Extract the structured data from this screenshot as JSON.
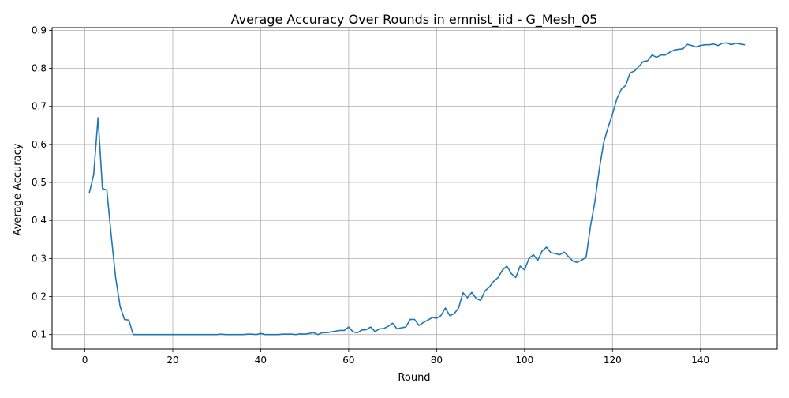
{
  "chart_data": {
    "type": "line",
    "title": "Average Accuracy Over Rounds in emnist_iid - G_Mesh_05",
    "xlabel": "Round",
    "ylabel": "Average Accuracy",
    "xlim": [
      -7.45,
      157.45
    ],
    "ylim": [
      0.062,
      0.907
    ],
    "xticks": [
      0,
      20,
      40,
      60,
      80,
      100,
      120,
      140
    ],
    "xtick_labels": [
      "0",
      "20",
      "40",
      "60",
      "80",
      "100",
      "120",
      "140"
    ],
    "yticks": [
      0.1,
      0.2,
      0.3,
      0.4,
      0.5,
      0.6,
      0.7,
      0.8,
      0.9
    ],
    "ytick_labels": [
      "0.1",
      "0.2",
      "0.3",
      "0.4",
      "0.5",
      "0.6",
      "0.7",
      "0.8",
      "0.9"
    ],
    "grid": true,
    "line_color": "#1f77b4",
    "series": [
      {
        "x": [
          1,
          2,
          3,
          4,
          5,
          6,
          7,
          8,
          9,
          10,
          11,
          12,
          13,
          14,
          15,
          16,
          17,
          18,
          19,
          20,
          21,
          22,
          23,
          24,
          25,
          26,
          27,
          28,
          29,
          30,
          31,
          32,
          33,
          34,
          35,
          36,
          37,
          38,
          39,
          40,
          41,
          42,
          43,
          44,
          45,
          46,
          47,
          48,
          49,
          50,
          51,
          52,
          53,
          54,
          55,
          56,
          57,
          58,
          59,
          60,
          61,
          62,
          63,
          64,
          65,
          66,
          67,
          68,
          69,
          70,
          71,
          72,
          73,
          74,
          75,
          76,
          77,
          78,
          79,
          80,
          81,
          82,
          83,
          84,
          85,
          86,
          87,
          88,
          89,
          90,
          91,
          92,
          93,
          94,
          95,
          96,
          97,
          98,
          99,
          100,
          101,
          102,
          103,
          104,
          105,
          106,
          107,
          108,
          109,
          110,
          111,
          112,
          113,
          114,
          115,
          116,
          117,
          118,
          119,
          120,
          121,
          122,
          123,
          124,
          125,
          126,
          127,
          128,
          129,
          130,
          131,
          132,
          133,
          134,
          135,
          136,
          137,
          138,
          139,
          140,
          141,
          142,
          143,
          144,
          145,
          146,
          147,
          148,
          149,
          150
        ],
        "y": [
          0.472,
          0.52,
          0.67,
          0.484,
          0.48,
          0.36,
          0.25,
          0.175,
          0.14,
          0.138,
          0.1,
          0.1,
          0.1,
          0.1,
          0.1,
          0.1,
          0.1,
          0.1,
          0.1,
          0.1,
          0.1,
          0.1,
          0.1,
          0.1,
          0.1,
          0.1,
          0.1,
          0.1,
          0.1,
          0.1,
          0.101,
          0.1,
          0.1,
          0.1,
          0.1,
          0.1,
          0.101,
          0.101,
          0.1,
          0.103,
          0.1,
          0.1,
          0.1,
          0.1,
          0.101,
          0.101,
          0.101,
          0.1,
          0.102,
          0.101,
          0.103,
          0.105,
          0.1,
          0.105,
          0.105,
          0.107,
          0.109,
          0.111,
          0.111,
          0.12,
          0.107,
          0.105,
          0.112,
          0.113,
          0.12,
          0.108,
          0.115,
          0.116,
          0.122,
          0.13,
          0.115,
          0.118,
          0.12,
          0.14,
          0.14,
          0.124,
          0.132,
          0.138,
          0.145,
          0.143,
          0.15,
          0.17,
          0.15,
          0.155,
          0.17,
          0.21,
          0.197,
          0.211,
          0.195,
          0.19,
          0.215,
          0.225,
          0.24,
          0.25,
          0.27,
          0.28,
          0.26,
          0.25,
          0.28,
          0.27,
          0.3,
          0.31,
          0.295,
          0.32,
          0.33,
          0.315,
          0.313,
          0.31,
          0.317,
          0.305,
          0.293,
          0.29,
          0.296,
          0.303,
          0.385,
          0.45,
          0.535,
          0.605,
          0.645,
          0.68,
          0.72,
          0.745,
          0.755,
          0.788,
          0.793,
          0.805,
          0.818,
          0.82,
          0.835,
          0.829,
          0.835,
          0.835,
          0.842,
          0.848,
          0.85,
          0.851,
          0.863,
          0.86,
          0.856,
          0.86,
          0.862,
          0.862,
          0.864,
          0.86,
          0.866,
          0.867,
          0.862,
          0.866,
          0.864,
          0.862
        ]
      }
    ]
  }
}
